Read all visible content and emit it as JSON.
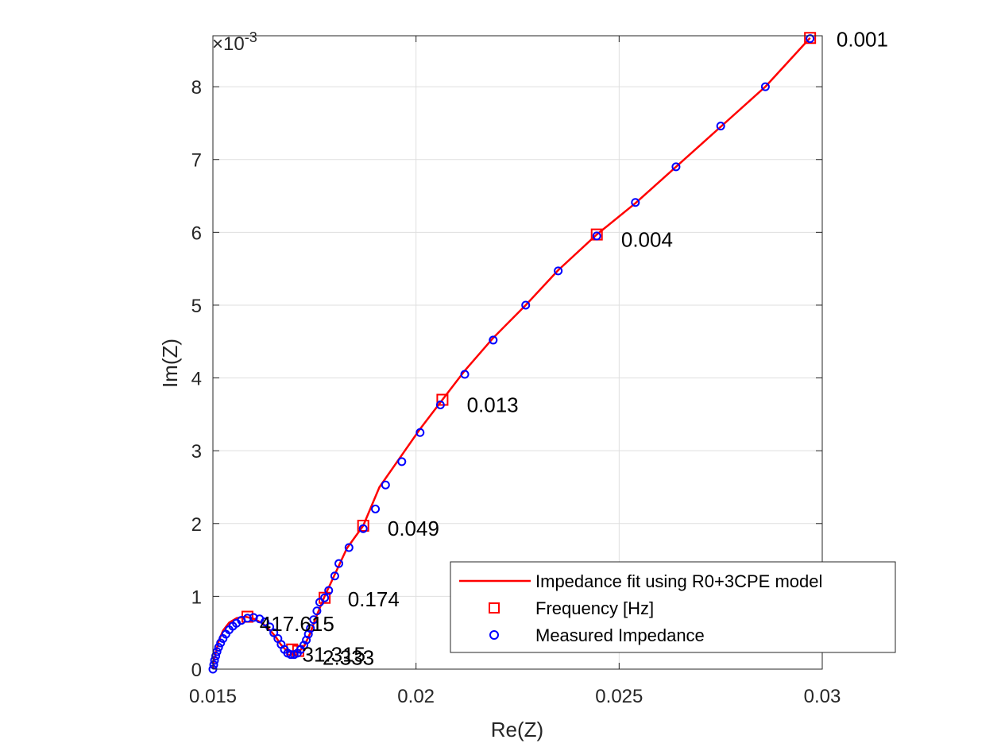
{
  "chart_data": {
    "type": "scatter",
    "title": "",
    "xlabel": "Re(Z)",
    "ylabel": "Im(Z)",
    "xlim": [
      0.015,
      0.03
    ],
    "ylim": [
      0,
      0.0087
    ],
    "x_ticks": [
      0.015,
      0.02,
      0.025,
      0.03
    ],
    "x_tick_labels": [
      "0.015",
      "0.02",
      "0.025",
      "0.03"
    ],
    "y_ticks": [
      0,
      1,
      2,
      3,
      4,
      5,
      6,
      7,
      8
    ],
    "y_tick_labels": [
      "0",
      "1",
      "2",
      "3",
      "4",
      "5",
      "6",
      "7",
      "8"
    ],
    "y_exponent_label": "×10",
    "y_exponent_power": "-3",
    "grid": true,
    "legend_position": "bottom-right",
    "colors": {
      "fit": "#ff0000",
      "frequency": "#ff0000",
      "measured": "#0000ff",
      "axis": "#262626",
      "grid": "#dfdfdf"
    },
    "series": [
      {
        "name": "Impedance fit using R0+3CPE model",
        "kind": "line",
        "points": [
          [
            0.015,
            0.0
          ],
          [
            0.01503,
            0.00012
          ],
          [
            0.01508,
            0.00025
          ],
          [
            0.01515,
            0.0004
          ],
          [
            0.01525,
            0.00053
          ],
          [
            0.0154,
            0.00064
          ],
          [
            0.01558,
            0.0007
          ],
          [
            0.0158,
            0.00072
          ],
          [
            0.01602,
            0.00069
          ],
          [
            0.01622,
            0.00063
          ],
          [
            0.0164,
            0.00054
          ],
          [
            0.01655,
            0.00044
          ],
          [
            0.01667,
            0.00034
          ],
          [
            0.0168,
            0.00026
          ],
          [
            0.01695,
            0.00022
          ],
          [
            0.0171,
            0.00023
          ],
          [
            0.01725,
            0.00032
          ],
          [
            0.0174,
            0.0005
          ],
          [
            0.01755,
            0.00073
          ],
          [
            0.01775,
            0.001
          ],
          [
            0.018,
            0.0013
          ],
          [
            0.0183,
            0.00166
          ],
          [
            0.0187,
            0.00197
          ],
          [
            0.0191,
            0.0025
          ],
          [
            0.0196,
            0.0029
          ],
          [
            0.0201,
            0.0033
          ],
          [
            0.02065,
            0.0037
          ],
          [
            0.0212,
            0.0041
          ],
          [
            0.0219,
            0.00455
          ],
          [
            0.0227,
            0.005
          ],
          [
            0.0235,
            0.00548
          ],
          [
            0.02445,
            0.00597
          ],
          [
            0.0254,
            0.0064
          ],
          [
            0.0264,
            0.0069
          ],
          [
            0.0275,
            0.00745
          ],
          [
            0.0286,
            0.008
          ],
          [
            0.0297,
            0.00867
          ]
        ]
      },
      {
        "name": "Frequency [Hz]",
        "kind": "marker-square",
        "points": [
          [
            0.0297,
            0.00867
          ],
          [
            0.02445,
            0.00597
          ],
          [
            0.02065,
            0.0037
          ],
          [
            0.0187,
            0.00197
          ],
          [
            0.01775,
            0.00098
          ],
          [
            0.01585,
            0.00072
          ],
          [
            0.01695,
            0.00027
          ],
          [
            0.0171,
            0.00025
          ]
        ]
      },
      {
        "name": "Measured Impedance",
        "kind": "marker-circle",
        "points": [
          [
            0.015,
            0.0
          ],
          [
            0.01502,
            6e-05
          ],
          [
            0.01504,
            0.00012
          ],
          [
            0.01507,
            0.00018
          ],
          [
            0.0151,
            0.00024
          ],
          [
            0.01514,
            0.0003
          ],
          [
            0.01519,
            0.00036
          ],
          [
            0.01525,
            0.00042
          ],
          [
            0.01532,
            0.00048
          ],
          [
            0.0154,
            0.00054
          ],
          [
            0.01549,
            0.00059
          ],
          [
            0.01558,
            0.00063
          ],
          [
            0.0157,
            0.00067
          ],
          [
            0.01585,
            0.0007
          ],
          [
            0.016,
            0.00071
          ],
          [
            0.01615,
            0.00069
          ],
          [
            0.01628,
            0.00065
          ],
          [
            0.0164,
            0.00058
          ],
          [
            0.0165,
            0.0005
          ],
          [
            0.0166,
            0.00042
          ],
          [
            0.01668,
            0.00034
          ],
          [
            0.01676,
            0.00027
          ],
          [
            0.01684,
            0.00022
          ],
          [
            0.01692,
            0.0002
          ],
          [
            0.017,
            0.0002
          ],
          [
            0.01708,
            0.00022
          ],
          [
            0.01716,
            0.00027
          ],
          [
            0.01724,
            0.00033
          ],
          [
            0.0173,
            0.0004
          ],
          [
            0.01735,
            0.00048
          ],
          [
            0.0174,
            0.00056
          ],
          [
            0.01748,
            0.00068
          ],
          [
            0.01756,
            0.0008
          ],
          [
            0.01763,
            0.00092
          ],
          [
            0.01775,
            0.00098
          ],
          [
            0.01785,
            0.00108
          ],
          [
            0.018,
            0.00128
          ],
          [
            0.0181,
            0.00145
          ],
          [
            0.01835,
            0.00167
          ],
          [
            0.0187,
            0.00193
          ],
          [
            0.019,
            0.0022
          ],
          [
            0.01925,
            0.00253
          ],
          [
            0.01965,
            0.00285
          ],
          [
            0.0201,
            0.00325
          ],
          [
            0.0206,
            0.00363
          ],
          [
            0.0212,
            0.00405
          ],
          [
            0.0219,
            0.00452
          ],
          [
            0.0227,
            0.005
          ],
          [
            0.0235,
            0.00547
          ],
          [
            0.02445,
            0.00595
          ],
          [
            0.0254,
            0.00641
          ],
          [
            0.0264,
            0.0069
          ],
          [
            0.0275,
            0.00746
          ],
          [
            0.0286,
            0.008
          ],
          [
            0.0297,
            0.00866
          ]
        ]
      }
    ],
    "annotations": [
      {
        "text": "0.001",
        "x": 0.03035,
        "y": 0.00865
      },
      {
        "text": "0.004",
        "x": 0.02505,
        "y": 0.0059
      },
      {
        "text": "0.013",
        "x": 0.02125,
        "y": 0.00363
      },
      {
        "text": "0.049",
        "x": 0.0193,
        "y": 0.00193
      },
      {
        "text": "0.174",
        "x": 0.01832,
        "y": 0.00096
      },
      {
        "text": "417.615",
        "x": 0.01615,
        "y": 0.00062
      },
      {
        "text": "31.315",
        "x": 0.0172,
        "y": 0.0002
      },
      {
        "text": "2.333",
        "x": 0.0177,
        "y": 0.00016
      }
    ]
  }
}
